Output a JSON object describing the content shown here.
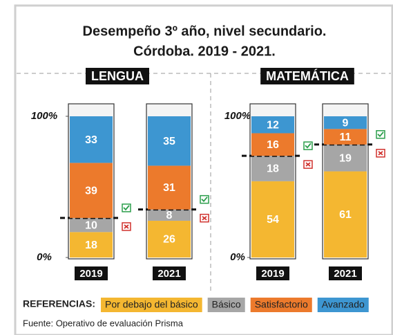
{
  "chart_data": {
    "type": "bar",
    "stacked": true,
    "title": [
      "Desempeño 3º año, nivel secundario.",
      "Córdoba. 2019 - 2021."
    ],
    "panels": [
      "LENGUA",
      "MATEMÁTICA"
    ],
    "categories": [
      "2019",
      "2021",
      "2019",
      "2021"
    ],
    "series": [
      {
        "name": "Por debajo del básico",
        "color": "#f4b731",
        "values": [
          18,
          26,
          54,
          61
        ]
      },
      {
        "name": "Básico",
        "color": "#a6a6a6",
        "values": [
          10,
          8,
          18,
          19
        ]
      },
      {
        "name": "Satisfactorio",
        "color": "#ec7a2c",
        "values": [
          39,
          31,
          16,
          11
        ]
      },
      {
        "name": "Avanzado",
        "color": "#3d96d1",
        "values": [
          33,
          35,
          12,
          9
        ]
      }
    ],
    "ylim": [
      0,
      100
    ],
    "yticks": [
      {
        "value": 0,
        "label": "0%"
      },
      {
        "value": 100,
        "label": "100%"
      }
    ],
    "legend_title": "REFERENCIAS:",
    "source": "Fuente: Operativo de evaluación Prisma"
  }
}
